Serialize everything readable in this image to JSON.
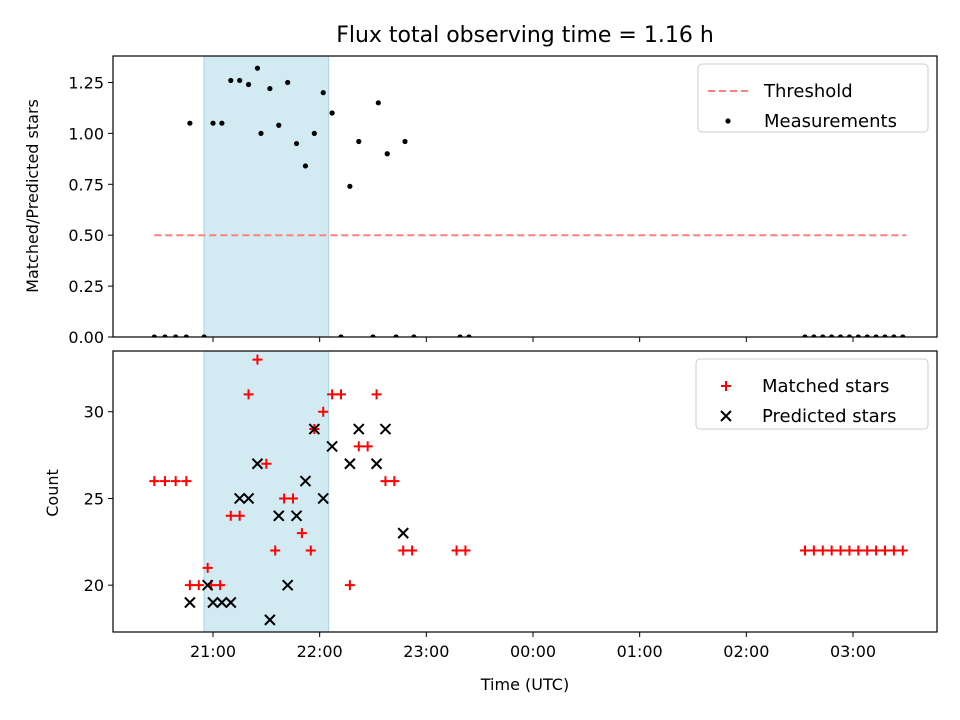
{
  "chart_data": [
    {
      "type": "scatter",
      "title": "Flux total observing time = 1.16 h",
      "ylabel": "Matched/Predicted stars",
      "xlabel": "",
      "x_axis_type": "time (hours from 21:00 UTC day 1; >3 wraps past midnight)",
      "ylim": [
        0,
        1.38
      ],
      "yticks": [
        "0.00",
        "0.25",
        "0.50",
        "0.75",
        "1.00",
        "1.25"
      ],
      "shaded_interval": {
        "start": "20:55",
        "end": "22:05",
        "color": "#add8e6"
      },
      "legend_position": "top-right",
      "series": [
        {
          "name": "Threshold",
          "kind": "dashed-line",
          "color": "#ff7f7f",
          "points": [
            [
              "20:27",
              0.5
            ],
            [
              "03:30",
              0.5
            ]
          ]
        },
        {
          "name": "Measurements",
          "kind": "dot",
          "color": "#000000",
          "points": [
            [
              "20:27",
              0
            ],
            [
              "20:33",
              0
            ],
            [
              "20:39",
              0
            ],
            [
              "20:45",
              0
            ],
            [
              "20:47",
              1.05
            ],
            [
              "20:55",
              0
            ],
            [
              "21:00",
              1.05
            ],
            [
              "21:05",
              1.05
            ],
            [
              "21:10",
              1.26
            ],
            [
              "21:15",
              1.26
            ],
            [
              "21:20",
              1.24
            ],
            [
              "21:25",
              1.32
            ],
            [
              "21:27",
              1.0
            ],
            [
              "21:32",
              1.22
            ],
            [
              "21:37",
              1.04
            ],
            [
              "21:42",
              1.25
            ],
            [
              "21:47",
              0.95
            ],
            [
              "21:52",
              0.84
            ],
            [
              "21:57",
              1.0
            ],
            [
              "22:02",
              1.2
            ],
            [
              "22:07",
              1.1
            ],
            [
              "22:12",
              0
            ],
            [
              "22:17",
              0.74
            ],
            [
              "22:22",
              0.96
            ],
            [
              "22:30",
              0
            ],
            [
              "22:33",
              1.15
            ],
            [
              "22:38",
              0.9
            ],
            [
              "22:43",
              0
            ],
            [
              "22:48",
              0.96
            ],
            [
              "22:53",
              0
            ],
            [
              "23:19",
              0
            ],
            [
              "23:24",
              0
            ],
            [
              "02:33",
              0
            ],
            [
              "02:38",
              0
            ],
            [
              "02:43",
              0
            ],
            [
              "02:48",
              0
            ],
            [
              "02:53",
              0
            ],
            [
              "02:58",
              0
            ],
            [
              "03:03",
              0
            ],
            [
              "03:08",
              0
            ],
            [
              "03:13",
              0
            ],
            [
              "03:18",
              0
            ],
            [
              "03:23",
              0
            ],
            [
              "03:28",
              0
            ]
          ]
        }
      ]
    },
    {
      "type": "scatter",
      "title": "",
      "ylabel": "Count",
      "xlabel": "Time (UTC)",
      "ylim": [
        17.3,
        33.5
      ],
      "yticks": [
        "20",
        "25",
        "30"
      ],
      "xticks": [
        "21:00",
        "22:00",
        "23:00",
        "00:00",
        "01:00",
        "02:00",
        "03:00"
      ],
      "shaded_interval": {
        "start": "20:55",
        "end": "22:05",
        "color": "#add8e6"
      },
      "legend_position": "top-right",
      "series": [
        {
          "name": "Matched stars",
          "kind": "plus",
          "color": "#ff0000",
          "points": [
            [
              "20:27",
              26
            ],
            [
              "20:33",
              26
            ],
            [
              "20:39",
              26
            ],
            [
              "20:45",
              26
            ],
            [
              "20:47",
              20
            ],
            [
              "20:52",
              20
            ],
            [
              "20:57",
              21
            ],
            [
              "20:59",
              20
            ],
            [
              "21:04",
              20
            ],
            [
              "21:10",
              24
            ],
            [
              "21:15",
              24
            ],
            [
              "21:20",
              31
            ],
            [
              "21:25",
              33
            ],
            [
              "21:30",
              27
            ],
            [
              "21:35",
              22
            ],
            [
              "21:40",
              25
            ],
            [
              "21:45",
              25
            ],
            [
              "21:50",
              23
            ],
            [
              "21:55",
              22
            ],
            [
              "21:57",
              29
            ],
            [
              "22:02",
              30
            ],
            [
              "22:07",
              31
            ],
            [
              "22:12",
              31
            ],
            [
              "22:17",
              20
            ],
            [
              "22:22",
              28
            ],
            [
              "22:27",
              28
            ],
            [
              "22:32",
              31
            ],
            [
              "22:37",
              26
            ],
            [
              "22:42",
              26
            ],
            [
              "22:47",
              22
            ],
            [
              "22:52",
              22
            ],
            [
              "23:17",
              22
            ],
            [
              "23:22",
              22
            ],
            [
              "02:33",
              22
            ],
            [
              "02:38",
              22
            ],
            [
              "02:43",
              22
            ],
            [
              "02:48",
              22
            ],
            [
              "02:53",
              22
            ],
            [
              "02:58",
              22
            ],
            [
              "03:03",
              22
            ],
            [
              "03:08",
              22
            ],
            [
              "03:13",
              22
            ],
            [
              "03:18",
              22
            ],
            [
              "03:23",
              22
            ],
            [
              "03:28",
              22
            ]
          ]
        },
        {
          "name": "Predicted stars",
          "kind": "x",
          "color": "#000000",
          "points": [
            [
              "20:47",
              19
            ],
            [
              "20:57",
              20
            ],
            [
              "21:00",
              19
            ],
            [
              "21:05",
              19
            ],
            [
              "21:10",
              19
            ],
            [
              "21:15",
              25
            ],
            [
              "21:20",
              25
            ],
            [
              "21:25",
              27
            ],
            [
              "21:32",
              18
            ],
            [
              "21:37",
              24
            ],
            [
              "21:42",
              20
            ],
            [
              "21:47",
              24
            ],
            [
              "21:52",
              26
            ],
            [
              "21:57",
              29
            ],
            [
              "22:02",
              25
            ],
            [
              "22:07",
              28
            ],
            [
              "22:17",
              27
            ],
            [
              "22:22",
              29
            ],
            [
              "22:32",
              27
            ],
            [
              "22:37",
              29
            ],
            [
              "22:47",
              23
            ]
          ]
        }
      ]
    }
  ]
}
